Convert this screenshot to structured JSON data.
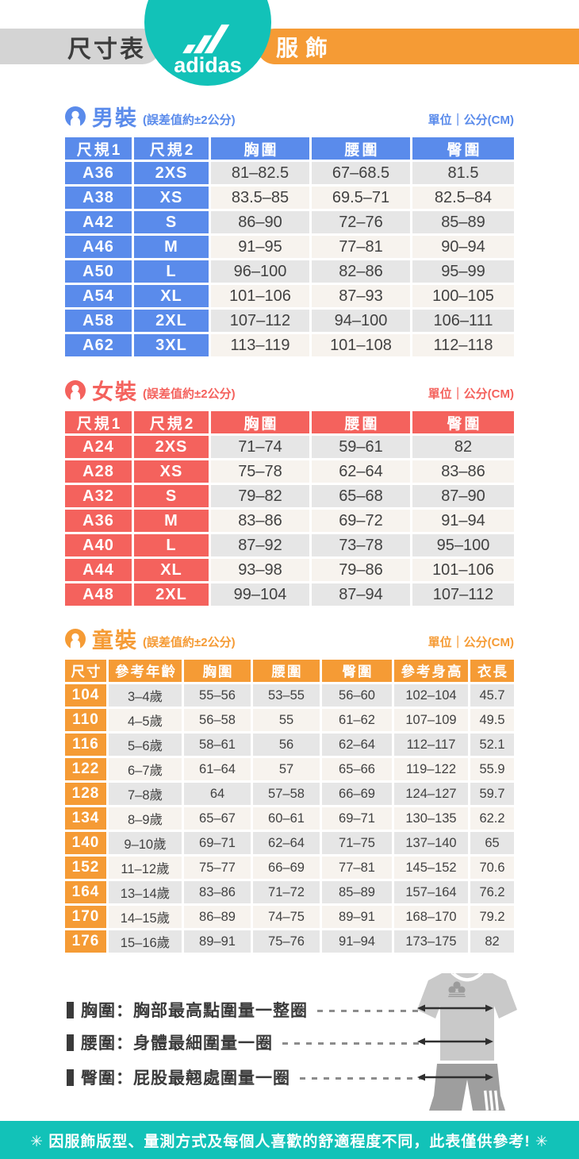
{
  "header": {
    "title": "尺寸表",
    "brand": "adidas",
    "category": "服飾"
  },
  "colors": {
    "teal": "#12C2B8",
    "orange": "#F59B35",
    "blue": "#5A8BEB",
    "red": "#F4625D",
    "pill_gray": "#D4D4D4",
    "cell_gray": "#E6E6E6",
    "cell_cream": "#F7F3EE",
    "text_dark": "#3D3D3D",
    "data_text": "#414141"
  },
  "sections": [
    {
      "id": "men",
      "title": "男裝",
      "tolerance": "(誤差值約±2公分)",
      "unit": "單位｜公分(CM)",
      "accent": "#5A8BEB",
      "label_cols": 2,
      "columns": [
        "尺規1",
        "尺規2",
        "胸圍",
        "腰圍",
        "臀圍"
      ],
      "rows": [
        [
          "A36",
          "2XS",
          "81–82.5",
          "67–68.5",
          "81.5"
        ],
        [
          "A38",
          "XS",
          "83.5–85",
          "69.5–71",
          "82.5–84"
        ],
        [
          "A42",
          "S",
          "86–90",
          "72–76",
          "85–89"
        ],
        [
          "A46",
          "M",
          "91–95",
          "77–81",
          "90–94"
        ],
        [
          "A50",
          "L",
          "96–100",
          "82–86",
          "95–99"
        ],
        [
          "A54",
          "XL",
          "101–106",
          "87–93",
          "100–105"
        ],
        [
          "A58",
          "2XL",
          "107–112",
          "94–100",
          "106–111"
        ],
        [
          "A62",
          "3XL",
          "113–119",
          "101–108",
          "112–118"
        ]
      ]
    },
    {
      "id": "women",
      "title": "女裝",
      "tolerance": "(誤差值約±2公分)",
      "unit": "單位｜公分(CM)",
      "accent": "#F4625D",
      "label_cols": 2,
      "columns": [
        "尺規1",
        "尺規2",
        "胸圍",
        "腰圍",
        "臀圍"
      ],
      "rows": [
        [
          "A24",
          "2XS",
          "71–74",
          "59–61",
          "82"
        ],
        [
          "A28",
          "XS",
          "75–78",
          "62–64",
          "83–86"
        ],
        [
          "A32",
          "S",
          "79–82",
          "65–68",
          "87–90"
        ],
        [
          "A36",
          "M",
          "83–86",
          "69–72",
          "91–94"
        ],
        [
          "A40",
          "L",
          "87–92",
          "73–78",
          "95–100"
        ],
        [
          "A44",
          "XL",
          "93–98",
          "79–86",
          "101–106"
        ],
        [
          "A48",
          "2XL",
          "99–104",
          "87–94",
          "107–112"
        ]
      ]
    },
    {
      "id": "kids",
      "title": "童裝",
      "tolerance": "(誤差值約±2公分)",
      "unit": "單位｜公分(CM)",
      "accent": "#F59B35",
      "label_cols": 1,
      "columns": [
        "尺寸",
        "參考年齡",
        "胸圍",
        "腰圍",
        "臀圍",
        "參考身高",
        "衣長"
      ],
      "rows": [
        [
          "104",
          "3–4歲",
          "55–56",
          "53–55",
          "56–60",
          "102–104",
          "45.7"
        ],
        [
          "110",
          "4–5歲",
          "56–58",
          "55",
          "61–62",
          "107–109",
          "49.5"
        ],
        [
          "116",
          "5–6歲",
          "58–61",
          "56",
          "62–64",
          "112–117",
          "52.1"
        ],
        [
          "122",
          "6–7歲",
          "61–64",
          "57",
          "65–66",
          "119–122",
          "55.9"
        ],
        [
          "128",
          "7–8歲",
          "64",
          "57–58",
          "66–69",
          "124–127",
          "59.7"
        ],
        [
          "134",
          "8–9歲",
          "65–67",
          "60–61",
          "69–71",
          "130–135",
          "62.2"
        ],
        [
          "140",
          "9–10歲",
          "69–71",
          "62–64",
          "71–75",
          "137–140",
          "65"
        ],
        [
          "152",
          "11–12歲",
          "75–77",
          "66–69",
          "77–81",
          "145–152",
          "70.6"
        ],
        [
          "164",
          "13–14歲",
          "83–86",
          "71–72",
          "85–89",
          "157–164",
          "76.2"
        ],
        [
          "170",
          "14–15歲",
          "86–89",
          "74–75",
          "89–91",
          "168–170",
          "79.2"
        ],
        [
          "176",
          "15–16歲",
          "89–91",
          "75–76",
          "91–94",
          "173–175",
          "82"
        ]
      ]
    }
  ],
  "legend": [
    {
      "text": "胸圍：胸部最高點圍量一整圈"
    },
    {
      "text": "腰圍：身體最細圍量一圈"
    },
    {
      "text": "臀圍：屁股最翹處圍量一圈"
    }
  ],
  "footer": {
    "note": "✳ 因服飾版型、量測方式及每個人喜歡的舒適程度不同，此表僅供參考! ✳"
  }
}
